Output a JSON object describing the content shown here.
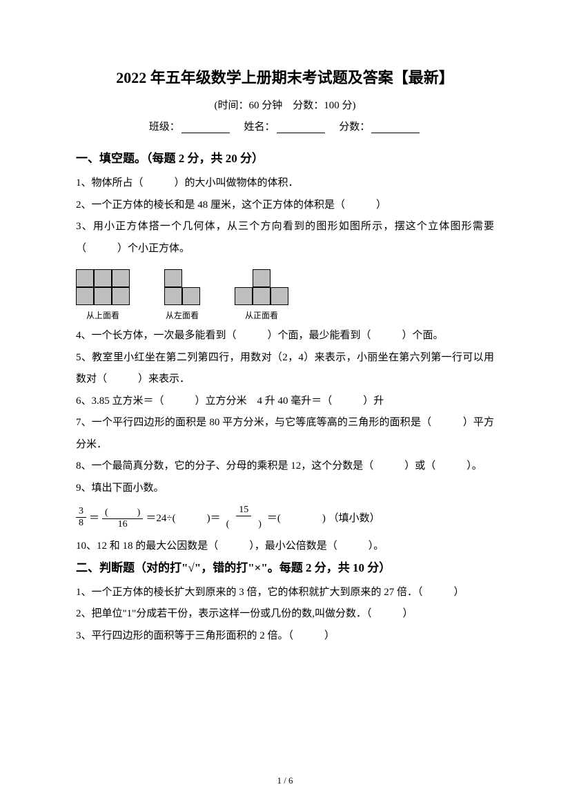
{
  "title": "2022 年五年级数学上册期末考试题及答案【最新】",
  "subtitle": "(时间：60 分钟　分数：100 分)",
  "info": {
    "class_label": "班级：",
    "name_label": "姓名：",
    "score_label": "分数："
  },
  "section1": {
    "title": "一、填空题。（每题 2 分，共 20 分）",
    "q1": "1、物体所占（　　　）的大小叫做物体的体积．",
    "q2": "2、一个正方体的棱长和是 48 厘米，这个正方体的体积是（　　　）",
    "q3": "3、用小正方体搭一个几何体，从三个方向看到的图形如图所示，摆这个立体图形需要（　　　）个小正方体。",
    "fig_labels": {
      "a": "从上面看",
      "b": "从左面看",
      "c": "从正面看"
    },
    "q4": "4、一个长方体，一次最多能看到（　　　）个面，最少能看到（　　　）个面。",
    "q5": "5、教室里小红坐在第二列第四行，用数对（2，4）来表示，小丽坐在第六列第一行可以用数对（　　　）来表示．",
    "q6": "6、3.85 立方米＝（　　　）立方分米　4 升 40 毫升＝（　　　）升",
    "q7": "7、一个平行四边形的面积是 80 平方分米，与它等底等高的三角形的面积是（　　　）平方分米．",
    "q8": "8、一个最简真分数，它的分子、分母的乘积是 12，这个分数是（　　　）或（　　　）。",
    "q9": "9、填出下面小数。",
    "formula": {
      "frac1_num": "3",
      "frac1_den": "8",
      "eq1": "＝",
      "frac2_num": "(　　　)",
      "frac2_den": "16",
      "eq2": "＝24÷(　　　)＝",
      "frac3_num": "15",
      "frac3_den": "(　　　)",
      "eq3": "＝(　　　　) （填小数）"
    },
    "q10": "10、12 和 18 的最大公因数是（　　　），最小公倍数是（　　　）。"
  },
  "section2": {
    "title": "二、判断题（对的打\"√\"，错的打\"×\"。每题 2 分，共 10 分）",
    "q1": "1、一个正方体的棱长扩大到原来的 3 倍，它的体积就扩大到原来的 27 倍．（　　　）",
    "q2": "2、把单位\"1\"分成若干份，表示这样一份或几份的数,叫做分数．（　　　）",
    "q3": "3、平行四边形的面积等于三角形面积的 2 倍。（　　　）"
  },
  "page_num": "1 / 6"
}
